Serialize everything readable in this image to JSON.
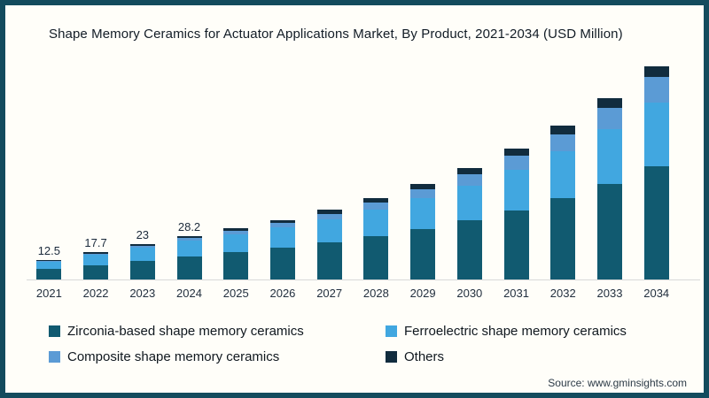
{
  "colors": {
    "zirconia": "#115A70",
    "ferroelectric": "#41A7E0",
    "composite": "#5B9BD5",
    "others": "#112C3E",
    "frame_border": "#134B5E",
    "axis_line": "#D8D8D8",
    "background": "#FFFEF9"
  },
  "chart_data": {
    "type": "bar",
    "stacked": true,
    "title": "Shape Memory Ceramics for Actuator Applications Market, By Product, 2021-2034 (USD Million)",
    "xlabel": "",
    "ylabel": "USD Million",
    "ylim": [
      0,
      144
    ],
    "grid": false,
    "legend_position": "bottom",
    "categories": [
      "2021",
      "2022",
      "2023",
      "2024",
      "2025",
      "2026",
      "2027",
      "2028",
      "2029",
      "2030",
      "2031",
      "2032",
      "2033",
      "2034"
    ],
    "series": [
      {
        "name": "Zirconia-based shape memory ceramics",
        "color_key": "zirconia",
        "values": [
          6.7,
          9.4,
          12.2,
          14.9,
          17.5,
          20.4,
          23.8,
          27.8,
          32.6,
          38.2,
          44.8,
          52.7,
          62.0,
          73.1
        ]
      },
      {
        "name": "Ferroelectric shape memory ceramics",
        "color_key": "ferroelectric",
        "values": [
          4.7,
          6.6,
          8.4,
          10.2,
          11.6,
          13.3,
          15.3,
          17.4,
          19.9,
          22.6,
          26.0,
          30.3,
          35.2,
          41.2
        ]
      },
      {
        "name": "Composite shape memory ceramics",
        "color_key": "composite",
        "values": [
          0.4,
          0.8,
          1.2,
          1.6,
          2.1,
          2.7,
          3.4,
          4.4,
          5.6,
          7.2,
          9.0,
          11.0,
          13.4,
          16.3
        ]
      },
      {
        "name": "Others",
        "color_key": "others",
        "values": [
          0.7,
          0.9,
          1.2,
          1.5,
          1.8,
          2.1,
          2.5,
          2.9,
          3.4,
          4.0,
          4.7,
          5.5,
          6.4,
          7.4
        ]
      }
    ],
    "totals": [
      12.5,
      17.7,
      23,
      28.2,
      33,
      38.5,
      45,
      52.5,
      61.5,
      72,
      84.5,
      99.5,
      117,
      138
    ],
    "data_labels": [
      "12.5",
      "17.7",
      "23",
      "28.2",
      "",
      "",
      "",
      "",
      "",
      "",
      "",
      "",
      "",
      ""
    ]
  },
  "legend": {
    "items": [
      {
        "label": "Zirconia-based shape memory ceramics",
        "color_key": "zirconia"
      },
      {
        "label": "Ferroelectric shape memory ceramics",
        "color_key": "ferroelectric"
      },
      {
        "label": "Composite shape memory ceramics",
        "color_key": "composite"
      },
      {
        "label": "Others",
        "color_key": "others"
      }
    ]
  },
  "source": "Source: www.gminsights.com"
}
